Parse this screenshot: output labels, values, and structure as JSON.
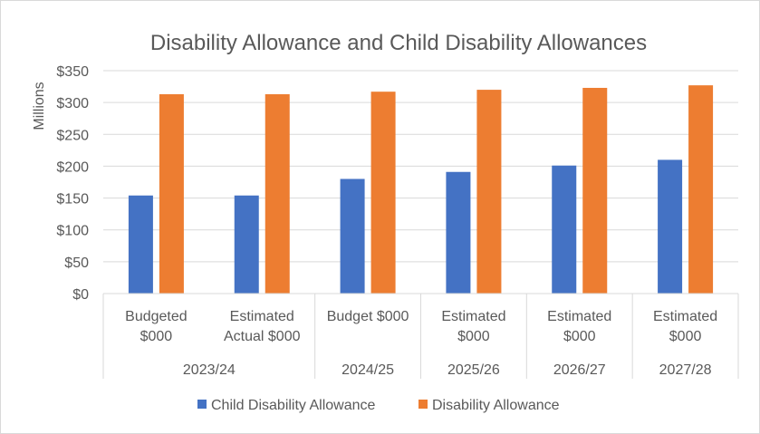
{
  "chart_data": {
    "type": "bar",
    "title": "Disability Allowance and Child Disability Allowances",
    "ylabel": "Millions",
    "xlabel": "",
    "ylim": [
      0,
      350
    ],
    "yticks": [
      0,
      50,
      100,
      150,
      200,
      250,
      300,
      350
    ],
    "ytick_labels": [
      "$0",
      "$50",
      "$100",
      "$150",
      "$200",
      "$250",
      "$300",
      "$350"
    ],
    "grid": true,
    "categories": [
      {
        "label_lines": [
          "Budgeted",
          "$000"
        ],
        "group": "2023/24"
      },
      {
        "label_lines": [
          "Estimated",
          "Actual $000"
        ],
        "group": "2023/24"
      },
      {
        "label_lines": [
          "Budget $000"
        ],
        "group": "2024/25"
      },
      {
        "label_lines": [
          "Estimated",
          "$000"
        ],
        "group": "2025/26"
      },
      {
        "label_lines": [
          "Estimated",
          "$000"
        ],
        "group": "2026/27"
      },
      {
        "label_lines": [
          "Estimated",
          "$000"
        ],
        "group": "2027/28"
      }
    ],
    "groups": [
      {
        "label": "2023/24",
        "span": 2
      },
      {
        "label": "2024/25",
        "span": 1
      },
      {
        "label": "2025/26",
        "span": 1
      },
      {
        "label": "2026/27",
        "span": 1
      },
      {
        "label": "2027/28",
        "span": 1
      }
    ],
    "series": [
      {
        "name": "Child Disability Allowance",
        "color": "#4472c4",
        "values": [
          154,
          154,
          180,
          191,
          201,
          210
        ]
      },
      {
        "name": "Disability Allowance",
        "color": "#ed7d31",
        "values": [
          313,
          313,
          317,
          320,
          323,
          327
        ]
      }
    ],
    "legend": "bottom"
  }
}
